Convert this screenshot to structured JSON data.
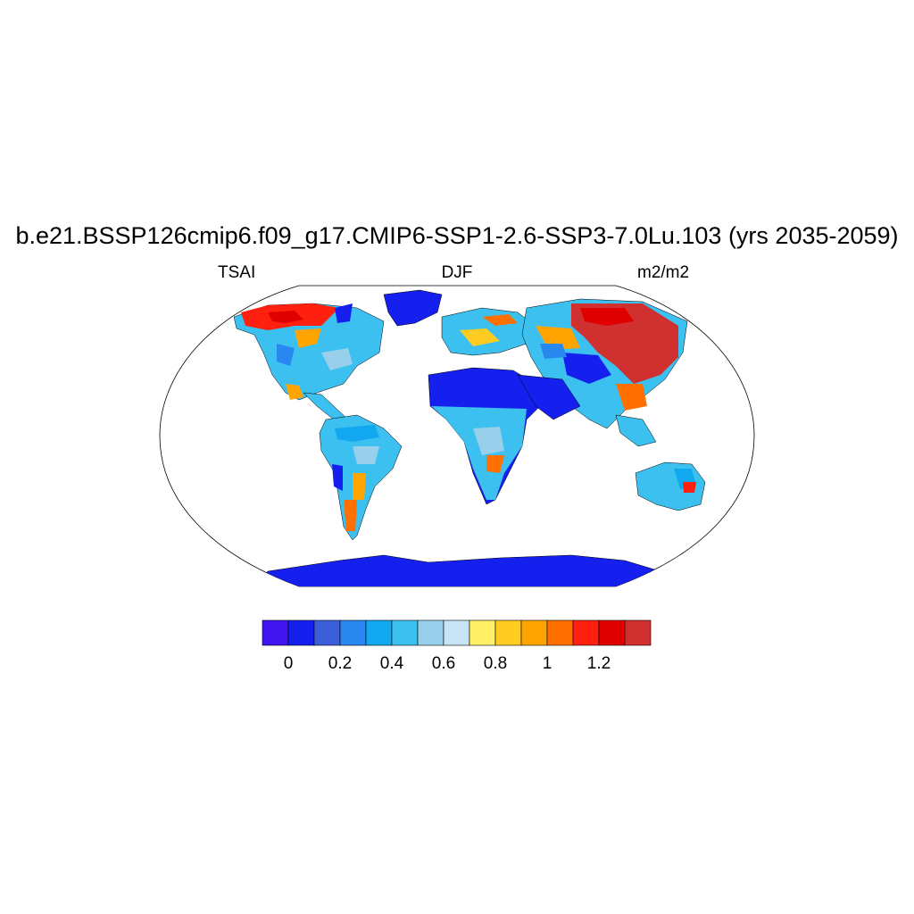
{
  "title": "b.e21.BSSP126cmip6.f09_g17.CMIP6-SSP1-2.6-SSP3-7.0Lu.103 (yrs 2035-2059)",
  "left_string": "TSAI",
  "center_string": "DJF",
  "right_string": "m2/m2",
  "colorbar": {
    "colors": [
      "#4016f0",
      "#1520ee",
      "#3b5fd8",
      "#2888f0",
      "#12a8f0",
      "#3cc0f0",
      "#98d0ec",
      "#c8e4f4",
      "#fff066",
      "#ffcc22",
      "#ffa400",
      "#ff7000",
      "#ff2010",
      "#e00000",
      "#d03030"
    ],
    "labels": [
      {
        "text": "0",
        "boundary": 1
      },
      {
        "text": "0.2",
        "boundary": 3
      },
      {
        "text": "0.4",
        "boundary": 5
      },
      {
        "text": "0.6",
        "boundary": 7
      },
      {
        "text": "0.8",
        "boundary": 9
      },
      {
        "text": "1",
        "boundary": 11
      },
      {
        "text": "1.2",
        "boundary": 13
      }
    ]
  }
}
